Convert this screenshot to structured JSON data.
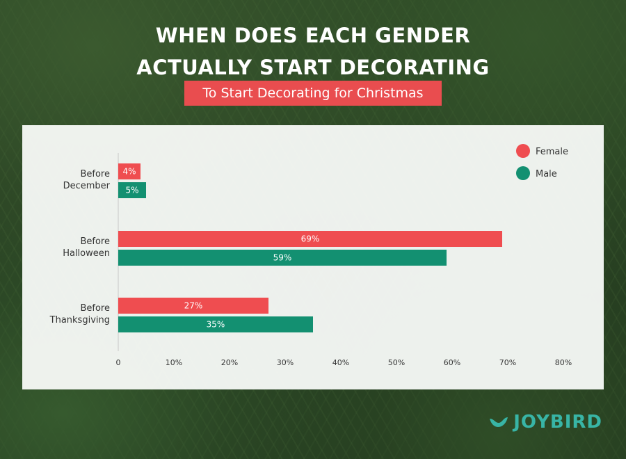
{
  "title": {
    "line1": "WHEN DOES EACH GENDER",
    "line2": "ACTUALLY START DECORATING"
  },
  "subtitle": "To Start Decorating for Christmas",
  "brand": {
    "name": "JOYBIRD",
    "color": "#38b5a6"
  },
  "colors": {
    "female": "#ef4d50",
    "male": "#139071"
  },
  "chart_data": {
    "type": "bar",
    "orientation": "horizontal",
    "categories": [
      [
        "Before",
        "December"
      ],
      [
        "Before",
        "Halloween"
      ],
      [
        "Before",
        "Thanksgiving"
      ]
    ],
    "series": [
      {
        "name": "Female",
        "values": [
          4,
          69,
          27
        ],
        "labels": [
          "4%",
          "69%",
          "27%"
        ],
        "color": "#ef4d50"
      },
      {
        "name": "Male",
        "values": [
          5,
          59,
          35
        ],
        "labels": [
          "5%",
          "59%",
          "35%"
        ],
        "color": "#139071"
      }
    ],
    "xticks": [
      "0",
      "10%",
      "20%",
      "30%",
      "40%",
      "50%",
      "60%",
      "70%",
      "80%"
    ],
    "xlim": [
      0,
      80
    ],
    "legend_position": "top-right",
    "grid": false
  }
}
